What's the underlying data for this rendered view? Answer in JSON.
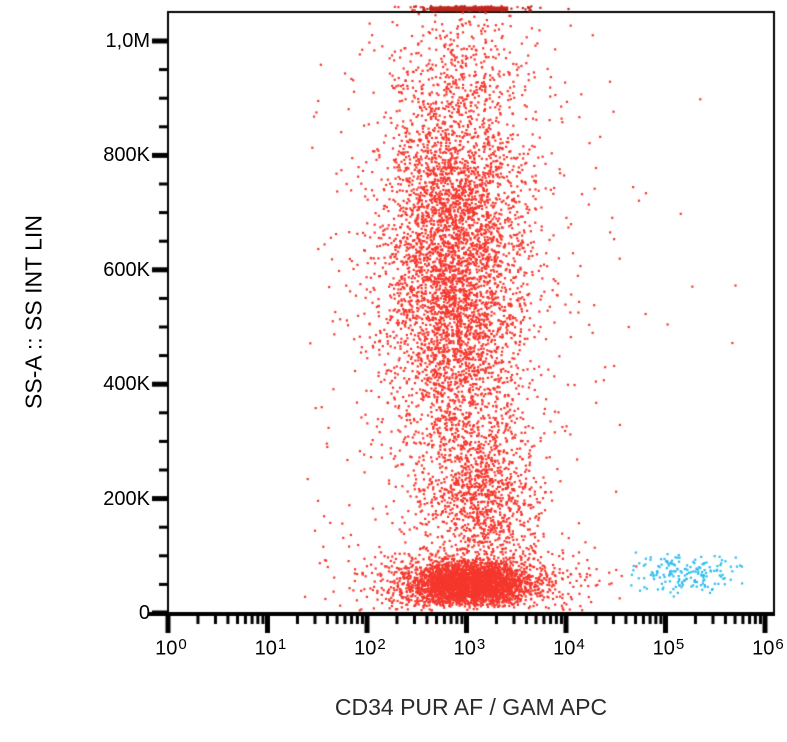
{
  "chart_data": {
    "type": "scatter",
    "title": "",
    "xlabel": "CD34 PUR AF / GAM APC",
    "ylabel": "SS-A :: SS INT LIN",
    "legend": "none",
    "x_axis": {
      "scale": "log10",
      "min": 1,
      "max": 1000000,
      "tick_exponents": [
        0,
        1,
        2,
        3,
        4,
        5,
        6
      ],
      "tick_base": "10",
      "minor_ticks": "log 2-9 each decade"
    },
    "y_axis": {
      "scale": "linear",
      "min": 0,
      "max": 1000000,
      "ticks": [
        {
          "value": 0,
          "label": "0"
        },
        {
          "value": 200000,
          "label": "200K"
        },
        {
          "value": 400000,
          "label": "400K"
        },
        {
          "value": 600000,
          "label": "600K"
        },
        {
          "value": 800000,
          "label": "800K"
        },
        {
          "value": 1000000,
          "label": "1,0M"
        }
      ],
      "minor_step": 50000
    },
    "colors": {
      "negative_population": "#f5372d",
      "pileup": "#bf261e",
      "positive_population": "#2ebcec",
      "axis": "#000000"
    },
    "populations": [
      {
        "name": "granulocytes_main",
        "color_key": "negative_population",
        "n": 4500,
        "x": {
          "dist": "lognormal10",
          "mean_exp": 2.885,
          "sd_exp": 0.34,
          "clip": [
            1.7,
            4.2
          ]
        },
        "y": {
          "dist": "normal",
          "mean": 608000,
          "sd": 195000,
          "clip": [
            30000,
            1300000
          ]
        }
      },
      {
        "name": "granulocytes_fringe",
        "color_key": "negative_population",
        "n": 320,
        "x": {
          "dist": "lognormal10",
          "mean_exp": 2.885,
          "sd_exp": 0.72,
          "clip": [
            1.45,
            4.6
          ]
        },
        "y": {
          "dist": "normal",
          "mean": 600000,
          "sd": 230000,
          "clip": [
            20000,
            1049000
          ]
        }
      },
      {
        "name": "monocytes",
        "color_key": "negative_population",
        "n": 850,
        "x": {
          "dist": "lognormal10",
          "mean_exp": 3.19,
          "sd_exp": 0.27,
          "clip": [
            2.45,
            4.1
          ]
        },
        "y": {
          "dist": "normal",
          "mean": 206000,
          "sd": 72000,
          "clip": [
            72000,
            350000
          ]
        }
      },
      {
        "name": "lymphocytes_core",
        "color_key": "negative_population",
        "n": 2700,
        "x": {
          "dist": "lognormal10",
          "mean_exp": 3.03,
          "sd_exp": 0.31,
          "clip": [
            2.2,
            3.9
          ]
        },
        "y": {
          "dist": "normal",
          "mean": 51000,
          "sd": 20000,
          "clip": [
            12000,
            97000
          ]
        }
      },
      {
        "name": "lymphocytes_halo",
        "color_key": "negative_population",
        "n": 650,
        "x": {
          "dist": "lognormal10",
          "mean_exp": 3.03,
          "sd_exp": 0.62,
          "clip": [
            1.55,
            4.68
          ]
        },
        "y": {
          "dist": "normal",
          "mean": 55000,
          "sd": 38000,
          "clip": [
            4000,
            165000
          ]
        }
      },
      {
        "name": "background_scatter",
        "color_key": "negative_population",
        "n": 430,
        "x": {
          "dist": "lognormal10",
          "mean_exp": 2.95,
          "sd_exp": 0.85,
          "clip": [
            1.35,
            4.72
          ]
        },
        "y": {
          "dist": "uniform",
          "range": [
            8000,
            1040000
          ]
        }
      },
      {
        "name": "right_outliers",
        "color_key": "negative_population",
        "n": 9,
        "x": {
          "dist": "uniform_exp",
          "range": [
            4.7,
            5.78
          ]
        },
        "y": {
          "dist": "uniform",
          "range": [
            380000,
            920000
          ]
        }
      },
      {
        "name": "offscale_top_events",
        "color_key": "pileup",
        "n": 65,
        "x": {
          "dist": "lognormal10",
          "mean_exp": 3.0,
          "sd_exp": 0.38,
          "clip": [
            2.45,
            4.35
          ]
        },
        "y": {
          "dist": "pileup_top"
        }
      },
      {
        "name": "cd34_positive",
        "color_key": "positive_population",
        "n": 175,
        "x": {
          "dist": "lognormal10",
          "mean_exp": 5.225,
          "sd_exp": 0.27,
          "clip": [
            4.62,
            5.97
          ]
        },
        "y": {
          "dist": "normal",
          "mean": 69000,
          "sd": 17000,
          "clip": [
            26000,
            112000
          ]
        }
      }
    ],
    "pileup_bar": {
      "x_exp_range": [
        2.63,
        3.42
      ],
      "position": "top_edge",
      "color_key": "pileup"
    }
  }
}
